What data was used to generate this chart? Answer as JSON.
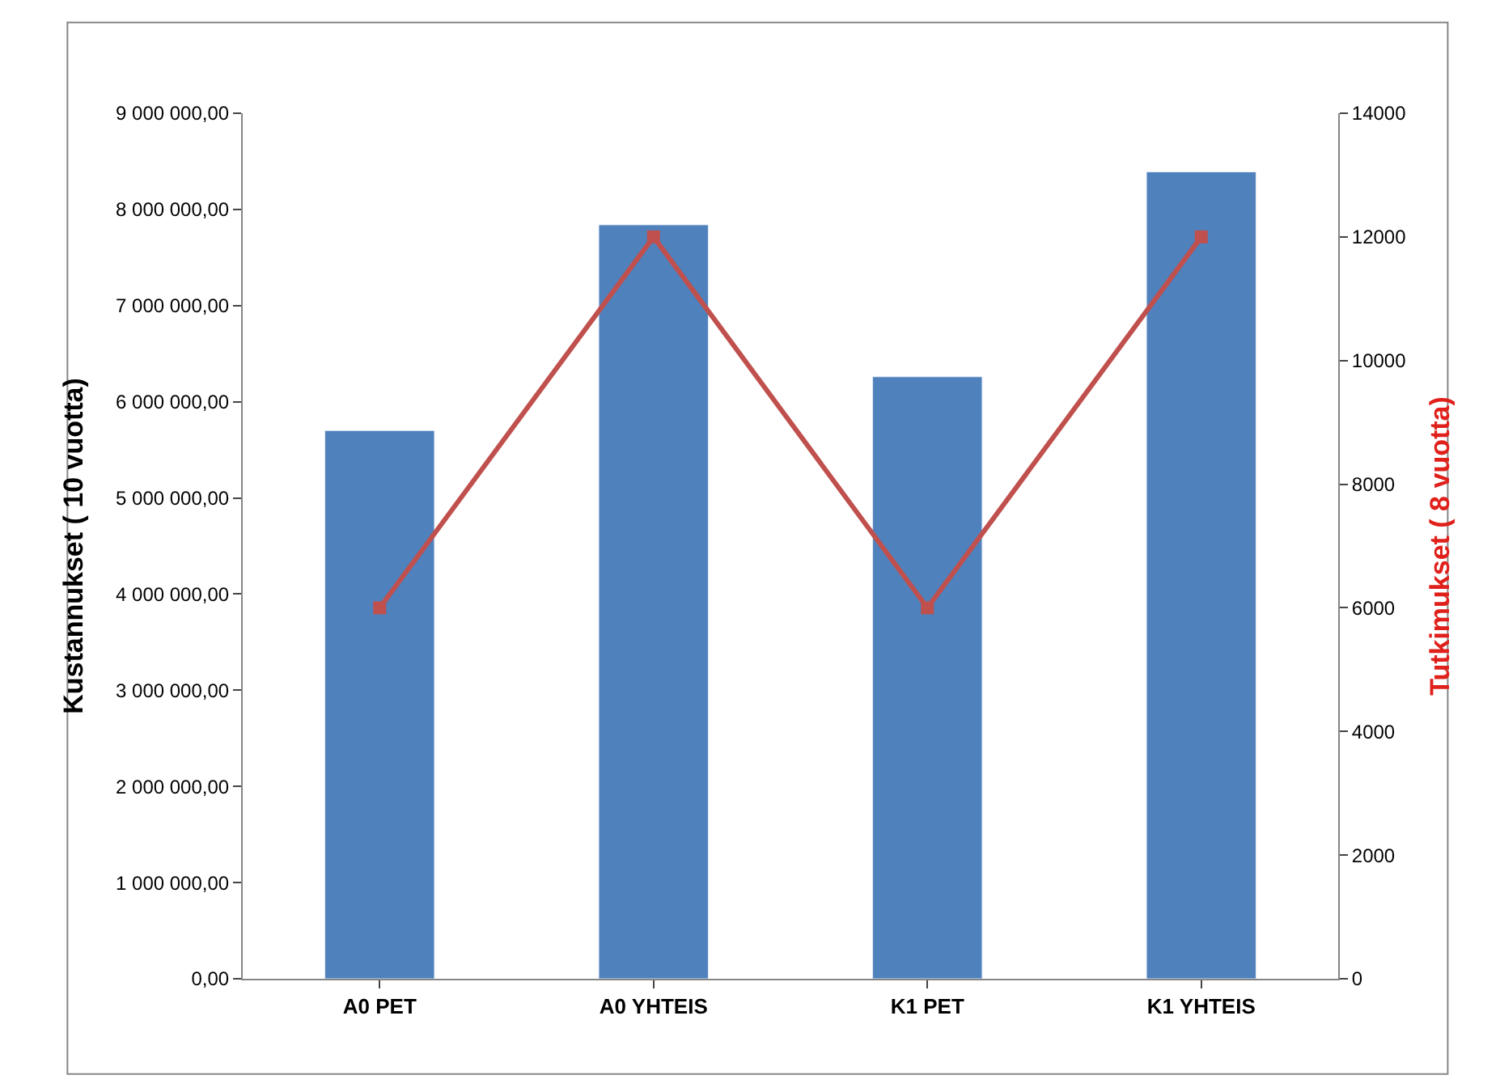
{
  "chart_data": {
    "type": "bar",
    "ylabel": "Kustannukset ( 10 vuotta)",
    "y2label": "Tutkimukset ( 8 vuotta)",
    "categories": [
      "A0 PET",
      "A0 YHTEIS",
      "K1 PET",
      "K1 YHTEIS"
    ],
    "series": [
      {
        "color": "#4f81bd",
        "values": [
          5700000,
          7840000,
          6260000,
          8390000
        ]
      },
      {
        "type": "line",
        "axis": "y2",
        "color": "#c0504d",
        "marker": "square",
        "values": [
          6000,
          12000,
          6000,
          12000
        ]
      }
    ],
    "ylim": [
      0,
      9000000
    ],
    "yticks": [
      {
        "value": 0,
        "label": "0,00"
      },
      {
        "value": 1000000,
        "label": "1 000 000,00"
      },
      {
        "value": 2000000,
        "label": "2 000 000,00"
      },
      {
        "value": 3000000,
        "label": "3 000 000,00"
      },
      {
        "value": 4000000,
        "label": "4 000 000,00"
      },
      {
        "value": 5000000,
        "label": "5 000 000,00"
      },
      {
        "value": 6000000,
        "label": "6 000 000,00"
      },
      {
        "value": 7000000,
        "label": "7 000 000,00"
      },
      {
        "value": 8000000,
        "label": "8 000 000,00"
      },
      {
        "value": 9000000,
        "label": "9 000 000,00"
      }
    ],
    "y2lim": [
      0,
      14000
    ],
    "y2ticks": [
      0,
      2000,
      4000,
      6000,
      8000,
      10000,
      12000,
      14000
    ],
    "grid": false
  }
}
